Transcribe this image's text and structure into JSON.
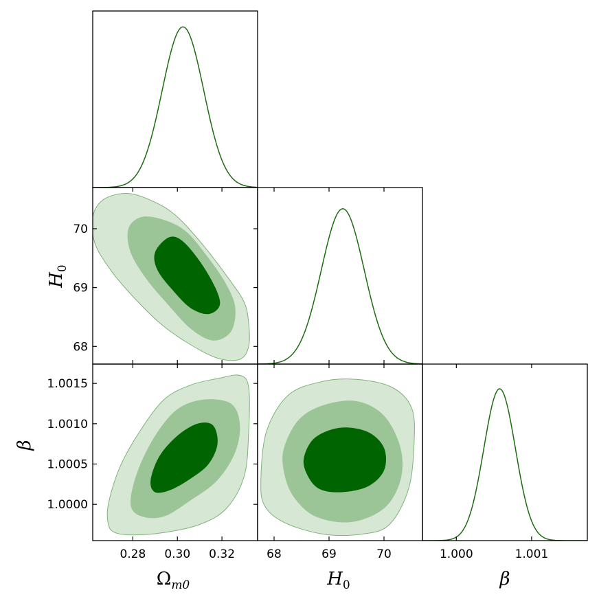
{
  "colors": {
    "line": "#1e6b12",
    "fill_outer": "#d6e7d3",
    "fill_middle": "#9bc597",
    "fill_inner": "#006400",
    "contour_stroke": "#7fb27a"
  },
  "chart_data": [
    {
      "type": "line",
      "panel": "Omega_m0 marginal",
      "x_param": "Omega_m0",
      "xlim": [
        0.262,
        0.336
      ],
      "mean": 0.3025,
      "sigma": 0.0093,
      "peak_fraction": 0.91
    },
    {
      "type": "contour",
      "panel": "Omega_m0 vs H_0",
      "x_param": "Omega_m0",
      "y_param": "H_0",
      "xlim": [
        0.262,
        0.336
      ],
      "ylim": [
        67.7,
        70.7
      ],
      "xticks": [
        "0.28",
        "0.30",
        "0.32"
      ],
      "yticks": [
        "68",
        "69",
        "70"
      ],
      "ytick_values": [
        68,
        69,
        70
      ],
      "regions": {
        "outer": [
          [
            0.262,
            70.2
          ],
          [
            0.267,
            70.5
          ],
          [
            0.278,
            70.6
          ],
          [
            0.29,
            70.45
          ],
          [
            0.3,
            70.2
          ],
          [
            0.312,
            69.7
          ],
          [
            0.324,
            69.1
          ],
          [
            0.33,
            68.75
          ],
          [
            0.332,
            68.4
          ],
          [
            0.332,
            68.0
          ],
          [
            0.328,
            67.78
          ],
          [
            0.318,
            67.8
          ],
          [
            0.305,
            68.05
          ],
          [
            0.292,
            68.4
          ],
          [
            0.28,
            68.85
          ],
          [
            0.27,
            69.3
          ],
          [
            0.263,
            69.75
          ]
        ],
        "middle": [
          [
            0.278,
            70.0
          ],
          [
            0.284,
            70.2
          ],
          [
            0.294,
            70.15
          ],
          [
            0.304,
            69.95
          ],
          [
            0.314,
            69.5
          ],
          [
            0.322,
            69.05
          ],
          [
            0.326,
            68.65
          ],
          [
            0.324,
            68.25
          ],
          [
            0.316,
            68.1
          ],
          [
            0.306,
            68.3
          ],
          [
            0.296,
            68.7
          ],
          [
            0.286,
            69.15
          ],
          [
            0.279,
            69.6
          ]
        ],
        "inner": [
          [
            0.29,
            69.6
          ],
          [
            0.296,
            69.85
          ],
          [
            0.302,
            69.8
          ],
          [
            0.31,
            69.45
          ],
          [
            0.317,
            69.0
          ],
          [
            0.319,
            68.7
          ],
          [
            0.314,
            68.55
          ],
          [
            0.306,
            68.65
          ],
          [
            0.298,
            68.95
          ],
          [
            0.291,
            69.3
          ]
        ]
      }
    },
    {
      "type": "line",
      "panel": "H_0 marginal",
      "x_param": "H_0",
      "xlim": [
        67.7,
        70.7
      ],
      "mean": 69.25,
      "sigma": 0.39,
      "peak_fraction": 0.88,
      "xticks": [
        "68",
        "69",
        "70"
      ]
    },
    {
      "type": "contour",
      "panel": "Omega_m0 vs beta",
      "x_param": "Omega_m0",
      "y_param": "beta",
      "xlim": [
        0.262,
        0.336
      ],
      "ylim": [
        0.99955,
        1.00174
      ],
      "xticks": [
        "0.28",
        "0.30",
        "0.32"
      ],
      "yticks": [
        "1.0000",
        "1.0005",
        "1.0010",
        "1.0015"
      ],
      "ytick_values": [
        1.0,
        1.0005,
        1.001,
        1.0015
      ],
      "regions": {
        "outer": [
          [
            0.269,
            0.99975
          ],
          [
            0.269,
            1.0
          ],
          [
            0.274,
            1.00045
          ],
          [
            0.283,
            1.0009
          ],
          [
            0.294,
            1.0013
          ],
          [
            0.306,
            1.00148
          ],
          [
            0.318,
            1.00156
          ],
          [
            0.328,
            1.0016
          ],
          [
            0.332,
            1.00145
          ],
          [
            0.332,
            1.0009
          ],
          [
            0.33,
            1.00035
          ],
          [
            0.322,
            0.99995
          ],
          [
            0.31,
            0.99975
          ],
          [
            0.294,
            0.99965
          ],
          [
            0.28,
            0.99962
          ],
          [
            0.272,
            0.99965
          ]
        ],
        "middle": [
          [
            0.279,
            1.0
          ],
          [
            0.282,
            1.0004
          ],
          [
            0.29,
            1.00085
          ],
          [
            0.3,
            1.00118
          ],
          [
            0.312,
            1.0013
          ],
          [
            0.324,
            1.00125
          ],
          [
            0.328,
            1.001
          ],
          [
            0.326,
            1.00065
          ],
          [
            0.318,
            1.0003
          ],
          [
            0.306,
            1.00005
          ],
          [
            0.294,
            0.99985
          ],
          [
            0.284,
            0.99985
          ]
        ],
        "inner": [
          [
            0.288,
            1.0003
          ],
          [
            0.292,
            1.0006
          ],
          [
            0.3,
            1.00085
          ],
          [
            0.309,
            1.001
          ],
          [
            0.316,
            1.00098
          ],
          [
            0.318,
            1.00075
          ],
          [
            0.314,
            1.0005
          ],
          [
            0.306,
            1.00032
          ],
          [
            0.297,
            1.00018
          ],
          [
            0.29,
            1.00015
          ]
        ]
      }
    },
    {
      "type": "contour",
      "panel": "H_0 vs beta",
      "x_param": "H_0",
      "y_param": "beta",
      "xlim": [
        67.7,
        70.7
      ],
      "ylim": [
        0.99955,
        1.00174
      ],
      "xticks": [
        "68",
        "69",
        "70"
      ],
      "regions": {
        "outer": [
          [
            67.76,
            1.0003
          ],
          [
            67.86,
            1.0009
          ],
          [
            68.25,
            1.00135
          ],
          [
            68.85,
            1.00152
          ],
          [
            69.5,
            1.00155
          ],
          [
            70.15,
            1.00145
          ],
          [
            70.5,
            1.0012
          ],
          [
            70.55,
            1.0008
          ],
          [
            70.45,
            1.0002
          ],
          [
            70.1,
            0.99975
          ],
          [
            69.6,
            0.99963
          ],
          [
            68.9,
            0.99963
          ],
          [
            68.2,
            0.99977
          ],
          [
            67.83,
            0.99998
          ]
        ],
        "middle": [
          [
            68.18,
            1.0007
          ],
          [
            68.45,
            1.00105
          ],
          [
            68.9,
            1.00123
          ],
          [
            69.5,
            1.00128
          ],
          [
            70.0,
            1.0011
          ],
          [
            70.3,
            1.0007
          ],
          [
            70.3,
            1.0003
          ],
          [
            70.0,
            0.99995
          ],
          [
            69.4,
            0.99978
          ],
          [
            68.75,
            0.99985
          ],
          [
            68.35,
            1.0001
          ],
          [
            68.18,
            1.0004
          ]
        ],
        "inner": [
          [
            68.55,
            1.0006
          ],
          [
            68.75,
            1.00083
          ],
          [
            69.2,
            1.00095
          ],
          [
            69.7,
            1.0009
          ],
          [
            70.0,
            1.0007
          ],
          [
            70.0,
            1.00042
          ],
          [
            69.7,
            1.00022
          ],
          [
            69.2,
            1.00015
          ],
          [
            68.8,
            1.0002
          ],
          [
            68.58,
            1.0004
          ]
        ]
      }
    },
    {
      "type": "line",
      "panel": "beta marginal",
      "x_param": "beta",
      "xlim": [
        0.99955,
        1.00174
      ],
      "mean": 1.000575,
      "sigma": 0.00021,
      "peak_fraction": 0.86,
      "xticks": [
        "1.000",
        "1.001"
      ],
      "xtick_values": [
        1.0,
        1.001
      ]
    }
  ],
  "axis_titles": {
    "omega": "Ω",
    "omega_sub": "m0",
    "h0": "H",
    "h0_sub": "0",
    "beta": "β"
  }
}
